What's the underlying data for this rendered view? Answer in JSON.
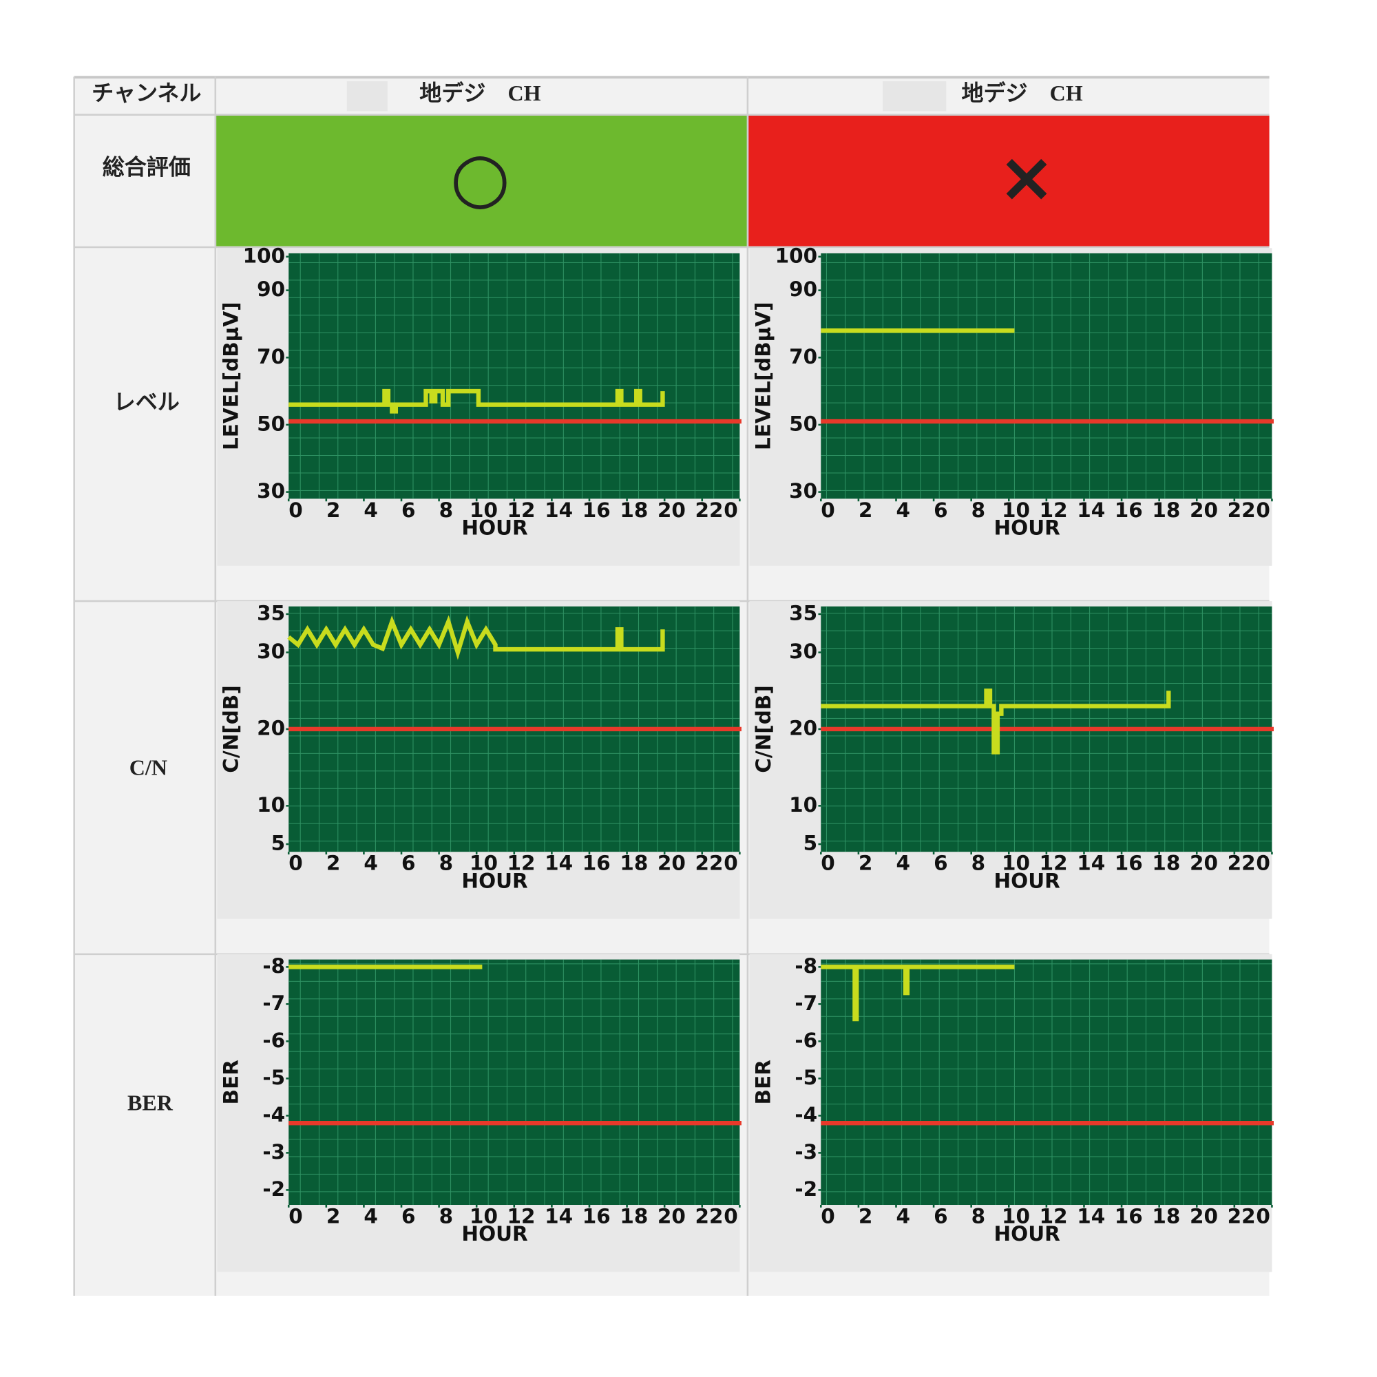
{
  "table": {
    "header": [
      "チャンネル",
      "地デジ　CH",
      "地デジ　CH"
    ],
    "rows": [
      {
        "label": "総合評価",
        "cells": [
          "○",
          "×"
        ]
      },
      {
        "label": "レベル"
      },
      {
        "label": "C/N"
      },
      {
        "label": "BER"
      }
    ]
  },
  "chart_data": [
    {
      "type": "line",
      "y_label": "LEVEL[dBμV]",
      "x_label": "HOUR",
      "grid": true,
      "xlim": [
        0,
        24
      ],
      "xticks": [
        0,
        2,
        4,
        6,
        8,
        10,
        12,
        14,
        16,
        18,
        20,
        22,
        {
          "value": 24,
          "label": "0"
        }
      ],
      "ylim": [
        28,
        101
      ],
      "yticks": [
        30,
        50,
        70,
        90,
        100
      ],
      "line": {
        "color": "#c8dc1e",
        "x": [
          0,
          5.1,
          5.1,
          5.3,
          5.3,
          5.5,
          5.5,
          5.7,
          5.7,
          7.3,
          7.3,
          7.6,
          7.6,
          7.8,
          7.8,
          8.2,
          8.2,
          8.5,
          8.5,
          10.1,
          10.1,
          17.5,
          17.5,
          17.7,
          17.7,
          18.5,
          18.5,
          18.7,
          18.7,
          19.9,
          19.9
        ],
        "values": [
          56,
          56,
          60,
          60,
          56,
          56,
          54,
          54,
          56,
          56,
          60,
          60,
          57,
          57,
          60,
          60,
          56,
          56,
          60,
          60,
          56,
          56,
          60,
          60,
          56,
          56,
          60,
          60,
          56,
          56,
          60
        ]
      },
      "threshold": {
        "value": 51,
        "color": "#e8392a"
      }
    },
    {
      "type": "line",
      "y_label": "LEVEL[dBμV]",
      "x_label": "HOUR",
      "grid": true,
      "xlim": [
        0,
        24
      ],
      "xticks": [
        0,
        2,
        4,
        6,
        8,
        10,
        12,
        14,
        16,
        18,
        20,
        22,
        {
          "value": 24,
          "label": "0"
        }
      ],
      "ylim": [
        28,
        101
      ],
      "yticks": [
        30,
        50,
        70,
        90,
        100
      ],
      "line": {
        "color": "#c8dc1e",
        "x": [
          0,
          10.3
        ],
        "values": [
          78,
          78
        ]
      },
      "threshold": {
        "value": 51,
        "color": "#e8392a"
      }
    },
    {
      "type": "line",
      "y_label": "C/N[dB]",
      "x_label": "HOUR",
      "grid": true,
      "xlim": [
        0,
        24
      ],
      "xticks": [
        0,
        2,
        4,
        6,
        8,
        10,
        12,
        14,
        16,
        18,
        20,
        22,
        {
          "value": 24,
          "label": "0"
        }
      ],
      "ylim": [
        4,
        36
      ],
      "yticks": [
        5,
        10,
        20,
        30,
        35
      ],
      "line": {
        "color": "#c8dc1e",
        "x": [
          0,
          0.5,
          1,
          1.5,
          2,
          2.5,
          3,
          3.5,
          4,
          4.5,
          5,
          5.5,
          6,
          6.5,
          7,
          7.5,
          8,
          8.5,
          9,
          9.5,
          10,
          10.5,
          11,
          11,
          17.5,
          17.5,
          17.7,
          17.7,
          19.9,
          19.9
        ],
        "values": [
          32,
          31,
          33,
          31,
          33,
          31,
          33,
          31,
          33,
          31,
          30.5,
          34,
          31,
          33,
          31,
          33,
          31,
          34,
          30,
          34,
          31,
          33,
          31,
          30.4,
          30.4,
          33,
          33,
          30.4,
          30.4,
          33
        ]
      },
      "threshold": {
        "value": 20,
        "color": "#e8392a"
      }
    },
    {
      "type": "line",
      "y_label": "C/N[dB]",
      "x_label": "HOUR",
      "grid": true,
      "xlim": [
        0,
        24
      ],
      "xticks": [
        0,
        2,
        4,
        6,
        8,
        10,
        12,
        14,
        16,
        18,
        20,
        22,
        {
          "value": 24,
          "label": "0"
        }
      ],
      "ylim": [
        4,
        36
      ],
      "yticks": [
        5,
        10,
        20,
        30,
        35
      ],
      "line": {
        "color": "#c8dc1e",
        "x": [
          0,
          8.8,
          8.8,
          9.0,
          9.0,
          9.2,
          9.2,
          9.4,
          9.4,
          9.6,
          9.6,
          18.5,
          18.5
        ],
        "values": [
          23,
          23,
          25,
          25,
          23,
          23,
          17,
          17,
          22,
          22,
          23,
          23,
          25
        ]
      },
      "threshold": {
        "value": 20,
        "color": "#e8392a"
      }
    },
    {
      "type": "line",
      "y_label": "BER",
      "x_label": "HOUR",
      "grid": true,
      "xlim": [
        0,
        24
      ],
      "xticks": [
        0,
        2,
        4,
        6,
        8,
        10,
        12,
        14,
        16,
        18,
        20,
        22,
        {
          "value": 24,
          "label": "0"
        }
      ],
      "ylim": [
        -1.6,
        -8.2
      ],
      "yticks": [
        -2,
        -3,
        -4,
        -5,
        -6,
        -7,
        -8
      ],
      "line": {
        "color": "#c8dc1e",
        "x": [
          0,
          10.3
        ],
        "values": [
          -8,
          -8
        ]
      },
      "threshold": {
        "value": -3.8,
        "color": "#e8392a"
      }
    },
    {
      "type": "line",
      "y_label": "BER",
      "x_label": "HOUR",
      "grid": true,
      "xlim": [
        0,
        24
      ],
      "xticks": [
        0,
        2,
        4,
        6,
        8,
        10,
        12,
        14,
        16,
        18,
        20,
        22,
        {
          "value": 24,
          "label": "0"
        }
      ],
      "ylim": [
        -1.6,
        -8.2
      ],
      "yticks": [
        -2,
        -3,
        -4,
        -5,
        -6,
        -7,
        -8
      ],
      "line": {
        "color": "#c8dc1e",
        "x": [
          0,
          1.8,
          1.8,
          1.9,
          1.9,
          4.5,
          4.5,
          4.6,
          4.6,
          10.3
        ],
        "values": [
          -8,
          -8,
          -6.6,
          -6.6,
          -8,
          -8,
          -7.3,
          -7.3,
          -8,
          -8
        ]
      },
      "threshold": {
        "value": -3.8,
        "color": "#e8392a"
      }
    }
  ]
}
